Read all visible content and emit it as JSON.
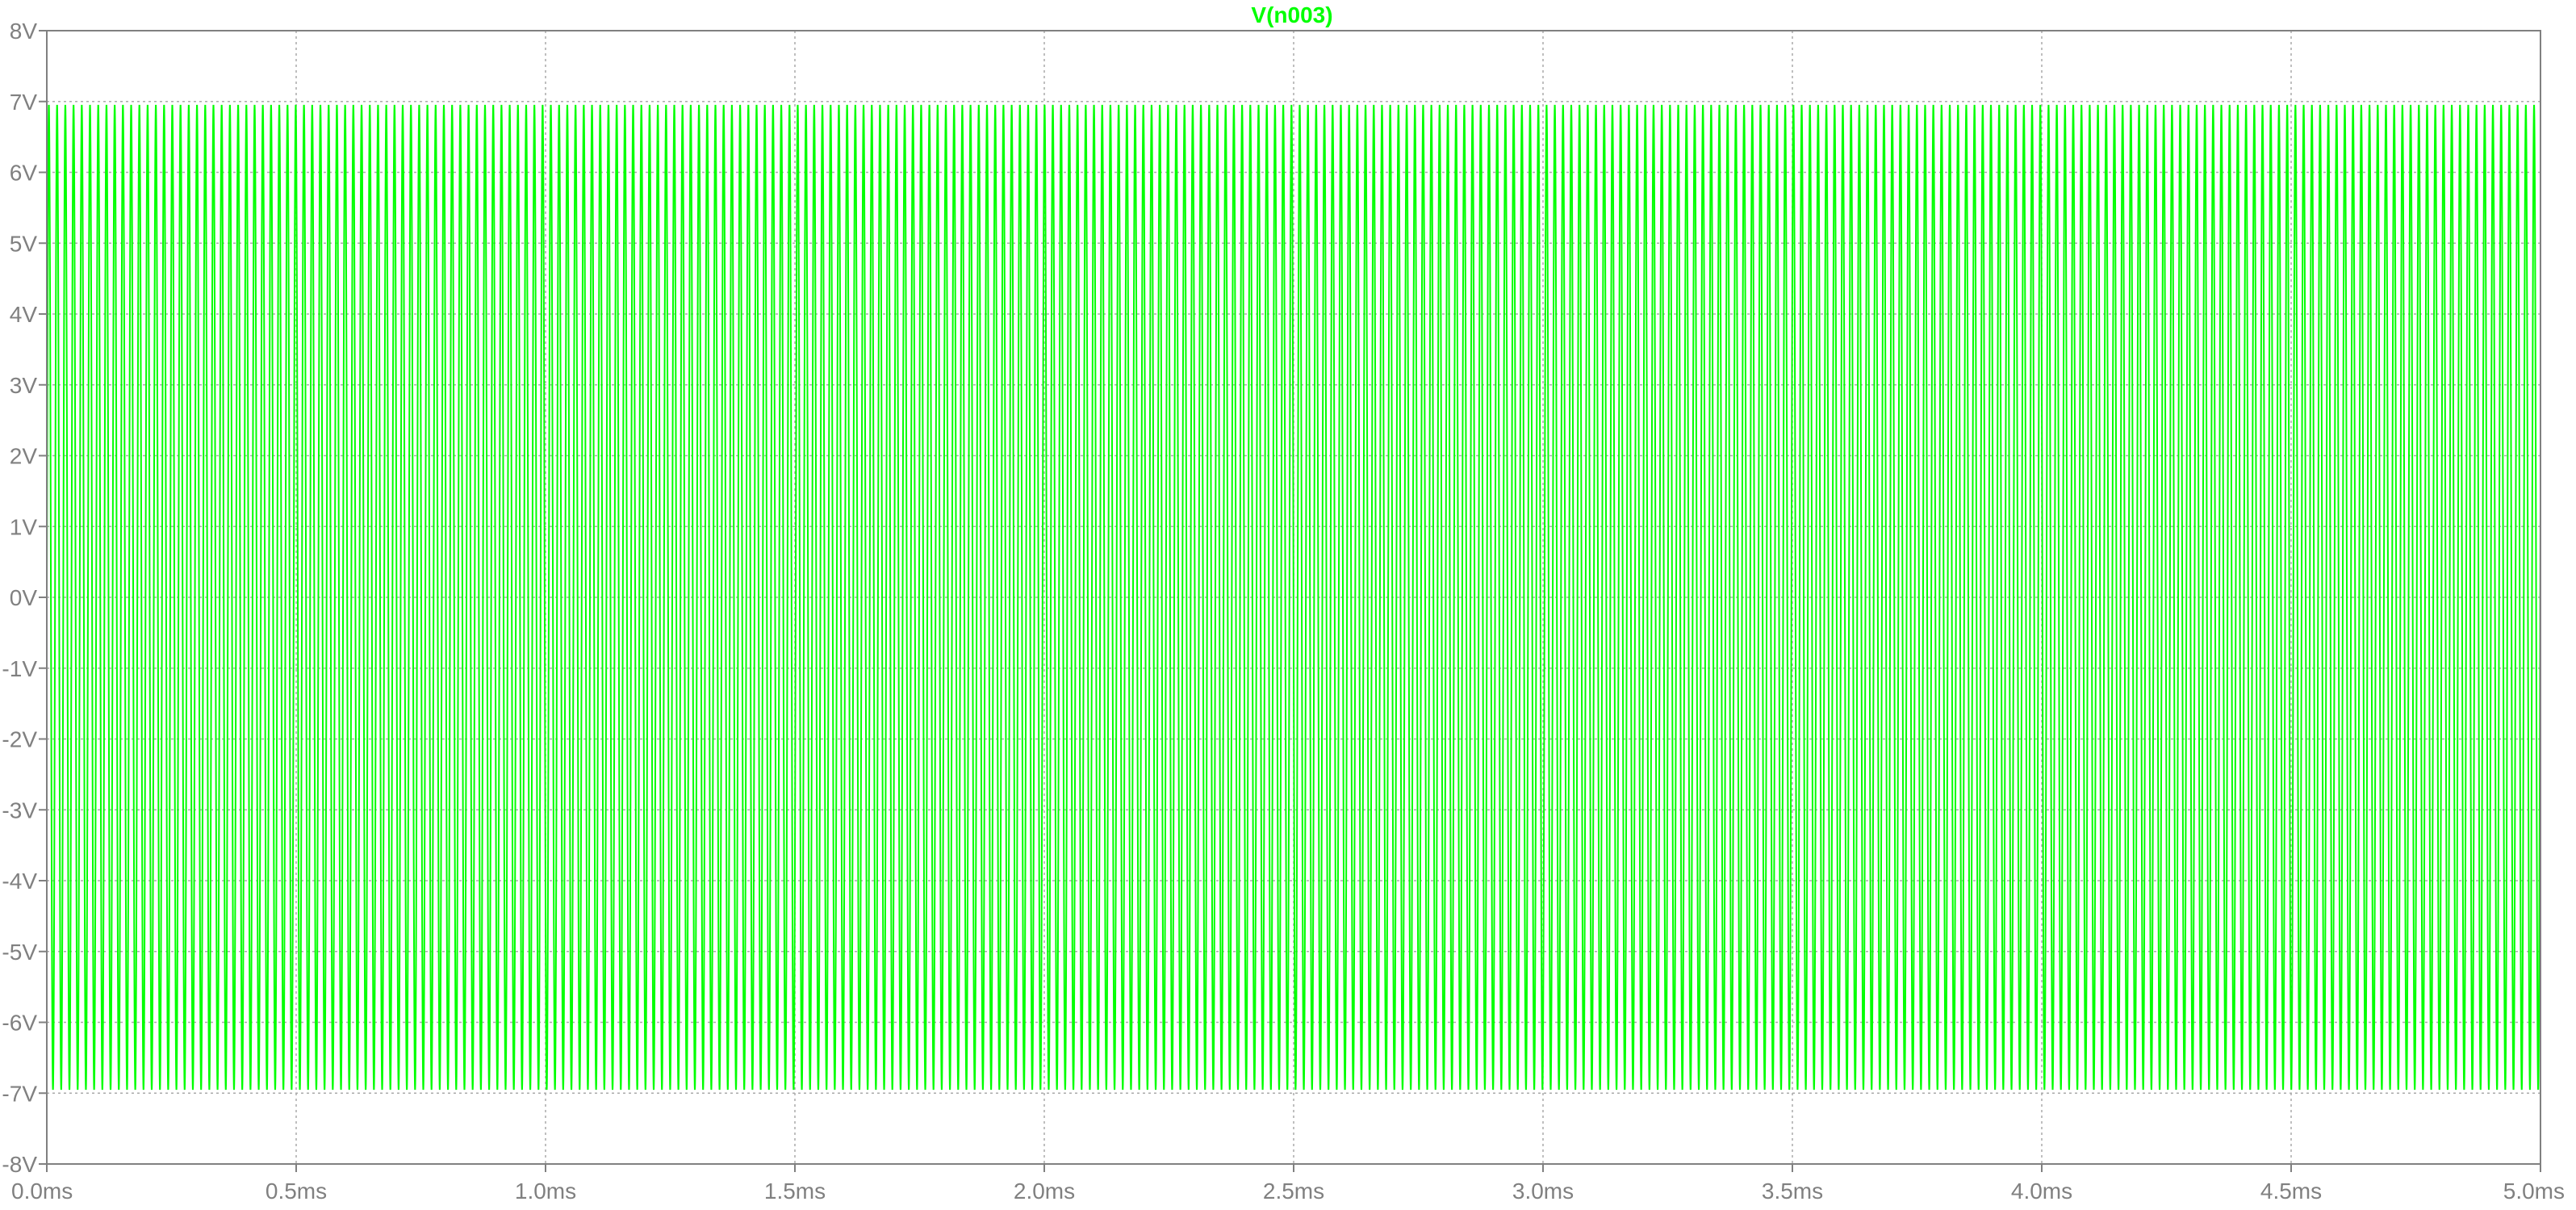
{
  "chart_data": {
    "type": "line",
    "title": "V(n003)",
    "title_color": "#00ff00",
    "xlabel": "",
    "ylabel": "",
    "xlim": [
      0.0,
      5.0
    ],
    "ylim": [
      -8,
      8
    ],
    "x_unit": "ms",
    "y_unit": "V",
    "x_ticks": [
      0.0,
      0.5,
      1.0,
      1.5,
      2.0,
      2.5,
      3.0,
      3.5,
      4.0,
      4.5,
      5.0
    ],
    "x_tick_labels": [
      "0.0ms",
      "0.5ms",
      "1.0ms",
      "1.5ms",
      "2.0ms",
      "2.5ms",
      "3.0ms",
      "3.5ms",
      "4.0ms",
      "4.5ms",
      "5.0ms"
    ],
    "y_ticks": [
      8,
      7,
      6,
      5,
      4,
      3,
      2,
      1,
      0,
      -1,
      -2,
      -3,
      -4,
      -5,
      -6,
      -7,
      -8
    ],
    "y_tick_labels": [
      "8V",
      "7V",
      "6V",
      "5V",
      "4V",
      "3V",
      "2V",
      "1V",
      "0V",
      "-1V",
      "-2V",
      "-3V",
      "-4V",
      "-5V",
      "-6V",
      "-7V",
      "-8V"
    ],
    "grid": true,
    "grid_color": "#aaaaaa",
    "axis_color": "#808080",
    "series": [
      {
        "name": "V(n003)",
        "color": "#00ff00",
        "waveform": "sine",
        "amplitude": 6.95,
        "offset": 0,
        "period": 0.0165
      }
    ]
  }
}
